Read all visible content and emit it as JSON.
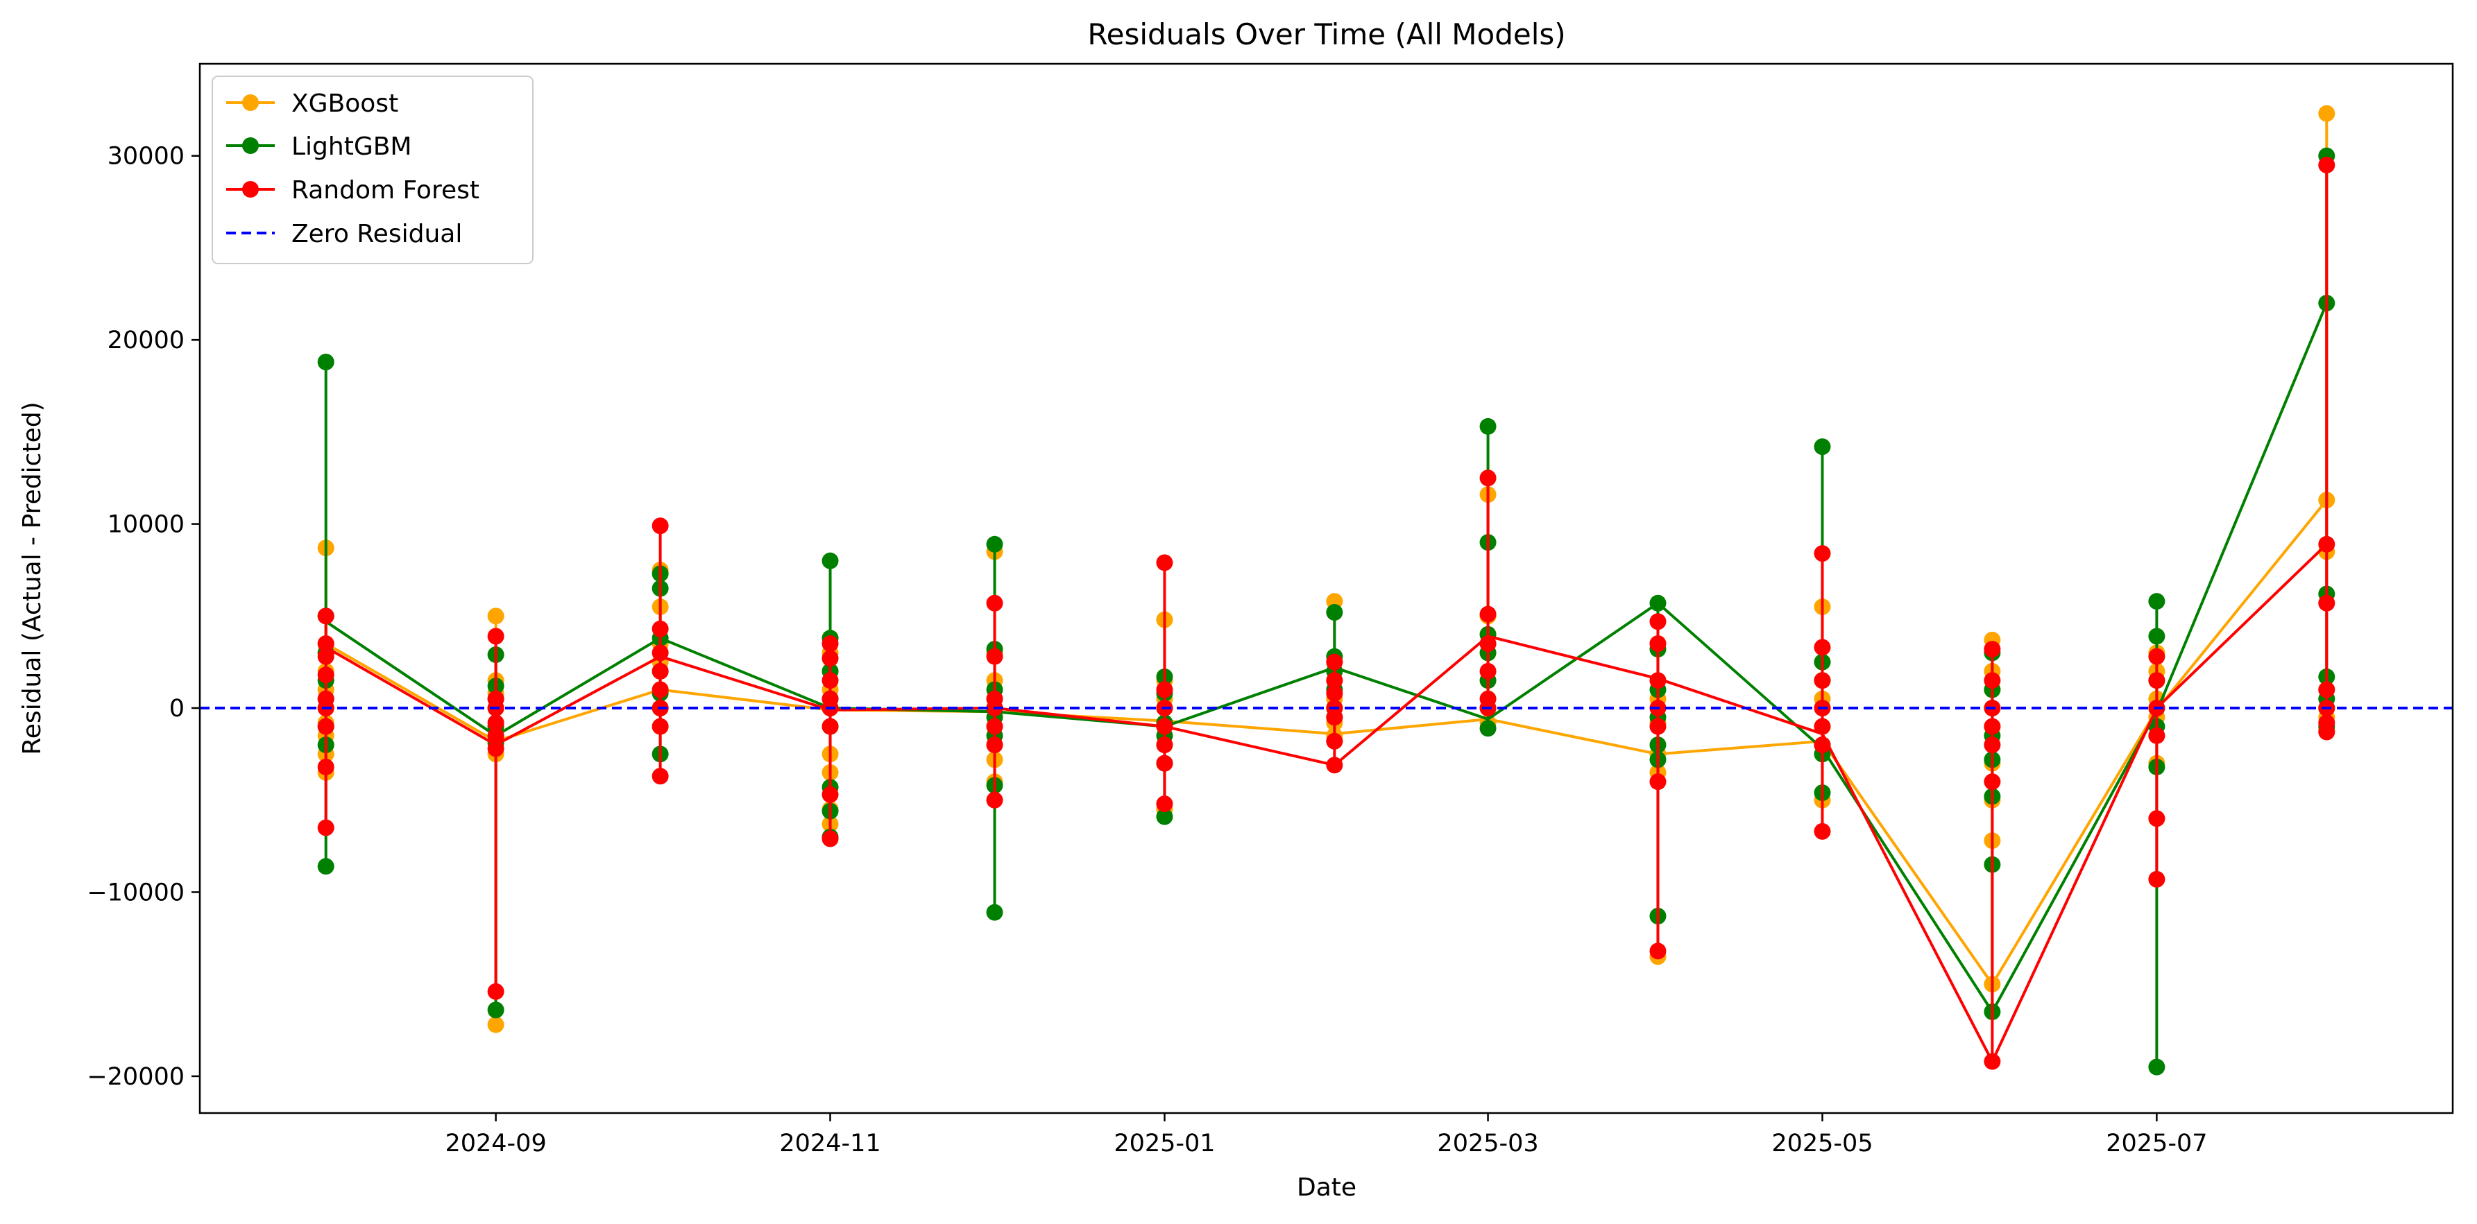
{
  "chart_data": {
    "type": "line",
    "title": "Residuals Over Time (All Models)",
    "xlabel": "Date",
    "ylabel": "Residual (Actual - Predicted)",
    "xlim": [
      "2024-07-09",
      "2025-08-24"
    ],
    "ylim": [
      -22000,
      35000
    ],
    "x_ticks": [
      "2024-09-01",
      "2024-11-01",
      "2025-01-01",
      "2025-03-01",
      "2025-05-01",
      "2025-07-01"
    ],
    "x_tick_labels": [
      "2024-09",
      "2024-11",
      "2025-01",
      "2025-03",
      "2025-05",
      "2025-07"
    ],
    "y_ticks": [
      -20000,
      -10000,
      0,
      10000,
      20000,
      30000
    ],
    "y_tick_labels": [
      "−20000",
      "−10000",
      "0",
      "10000",
      "20000",
      "30000"
    ],
    "grid": false,
    "legend_position": "top-left",
    "legend": [
      "XGBoost",
      "LightGBM",
      "Random Forest",
      "Zero Residual"
    ],
    "x": [
      "2024-08-01",
      "2024-09-01",
      "2024-10-01",
      "2024-11-01",
      "2024-12-01",
      "2025-01-01",
      "2025-02-01",
      "2025-03-01",
      "2025-04-01",
      "2025-05-01",
      "2025-06-01",
      "2025-07-01",
      "2025-08-01"
    ],
    "series": [
      {
        "name": "XGBoost",
        "color": "#ffa500",
        "points": [
          [
            8700,
            5000,
            3500,
            3000,
            2000,
            1000,
            0,
            -800,
            -1500,
            -2500,
            -3500
          ],
          [
            5000,
            1500,
            800,
            0,
            -1000,
            -1800,
            -2500,
            -17200
          ],
          [
            7500,
            5500,
            3500,
            2500,
            1000,
            0,
            -1000
          ],
          [
            3800,
            3000,
            2000,
            1000,
            0,
            -1000,
            -2500,
            -3500,
            -5500,
            -6300
          ],
          [
            8500,
            3000,
            1500,
            500,
            0,
            -1000,
            -2000,
            -2800,
            -4000
          ],
          [
            4800,
            1500,
            500,
            0,
            -1000,
            -2000,
            -3000,
            -5500
          ],
          [
            5800,
            2500,
            1500,
            500,
            0,
            -800,
            -1500
          ],
          [
            11600,
            5000,
            4000,
            3000,
            1500,
            0,
            -800
          ],
          [
            3500,
            1500,
            500,
            -800,
            -2500,
            -3500,
            -13500
          ],
          [
            5500,
            2500,
            1500,
            500,
            -1000,
            -2000,
            -5000
          ],
          [
            3700,
            2000,
            1000,
            0,
            -1000,
            -3000,
            -5000,
            -7200,
            -15000
          ],
          [
            3000,
            2000,
            500,
            -500,
            -1500,
            -3000,
            -6000
          ],
          [
            32300,
            11300,
            8500,
            1000,
            0,
            -500,
            -1200
          ]
        ]
      },
      {
        "name": "LightGBM",
        "color": "#008000",
        "points": [
          [
            18800,
            5000,
            3000,
            1500,
            500,
            0,
            -1000,
            -2000,
            -8600
          ],
          [
            2900,
            1200,
            500,
            0,
            -1000,
            -1900,
            -16400
          ],
          [
            7300,
            6500,
            3800,
            2000,
            800,
            0,
            -2500
          ],
          [
            8000,
            3800,
            2000,
            500,
            0,
            -1000,
            -4300,
            -5600,
            -7000
          ],
          [
            8900,
            3200,
            1000,
            0,
            -500,
            -1500,
            -4200,
            -11100
          ],
          [
            1700,
            800,
            0,
            -800,
            -1500,
            -3000,
            -5900
          ],
          [
            5200,
            2800,
            2000,
            1000,
            0,
            -500,
            -1800
          ],
          [
            15300,
            9000,
            4000,
            3000,
            1500,
            0,
            -1100
          ],
          [
            5700,
            3200,
            1000,
            -500,
            -2000,
            -2800,
            -11300
          ],
          [
            14200,
            2500,
            1500,
            0,
            -2000,
            -2500,
            -4600
          ],
          [
            3000,
            1000,
            0,
            -1500,
            -2800,
            -4800,
            -8500,
            -16500
          ],
          [
            5800,
            3900,
            1500,
            0,
            -1000,
            -3200,
            -19500
          ],
          [
            30000,
            22000,
            6200,
            1700,
            500,
            0,
            -1000
          ]
        ]
      },
      {
        "name": "Random Forest",
        "color": "#ff0000",
        "points": [
          [
            5000,
            3500,
            2800,
            1800,
            500,
            0,
            -1000,
            -3200,
            -6500
          ],
          [
            3900,
            500,
            0,
            -800,
            -1500,
            -2200,
            -15400
          ],
          [
            9900,
            4300,
            3000,
            2000,
            1000,
            0,
            -1000,
            -3700
          ],
          [
            3500,
            2700,
            1500,
            500,
            0,
            -1000,
            -4700,
            -7100
          ],
          [
            5700,
            2800,
            500,
            0,
            -1000,
            -2000,
            -5000
          ],
          [
            7900,
            1000,
            0,
            -1000,
            -2000,
            -3000,
            -5200
          ],
          [
            2500,
            1500,
            800,
            0,
            -500,
            -1800,
            -3100
          ],
          [
            12500,
            5100,
            3500,
            2000,
            500,
            0
          ],
          [
            4700,
            3500,
            1500,
            0,
            -1000,
            -4000,
            -13200
          ],
          [
            8400,
            3300,
            1500,
            0,
            -1000,
            -2000,
            -6700
          ],
          [
            3200,
            1500,
            0,
            -1000,
            -2000,
            -4000,
            -19200
          ],
          [
            2800,
            1500,
            0,
            -1500,
            -6000,
            -9300
          ],
          [
            29500,
            8900,
            5700,
            1000,
            0,
            -800,
            -1300
          ]
        ],
        "trend": [
          3300,
          -2000,
          2800,
          -100,
          0,
          -1000,
          -3100,
          3900,
          1600,
          -1400,
          -19200,
          0,
          8900
        ]
      }
    ],
    "trend_lines": [
      {
        "name": "XGBoost",
        "color": "#ffa500",
        "values": [
          3500,
          -1800,
          1000,
          -100,
          -200,
          -700,
          -1400,
          -600,
          -2500,
          -1800,
          -15000,
          -100,
          11300
        ]
      },
      {
        "name": "LightGBM",
        "color": "#008000",
        "values": [
          4700,
          -1500,
          3800,
          0,
          -200,
          -1000,
          2200,
          -600,
          5700,
          -2200,
          -16500,
          -200,
          22000
        ]
      },
      {
        "name": "Random Forest",
        "color": "#ff0000",
        "values": [
          3300,
          -2000,
          2800,
          -100,
          0,
          -1000,
          -3100,
          3900,
          1600,
          -1400,
          -19200,
          0,
          8900
        ]
      }
    ],
    "reference_line": {
      "name": "Zero Residual",
      "y": 0,
      "color": "#0000ff",
      "style": "dashed"
    }
  }
}
